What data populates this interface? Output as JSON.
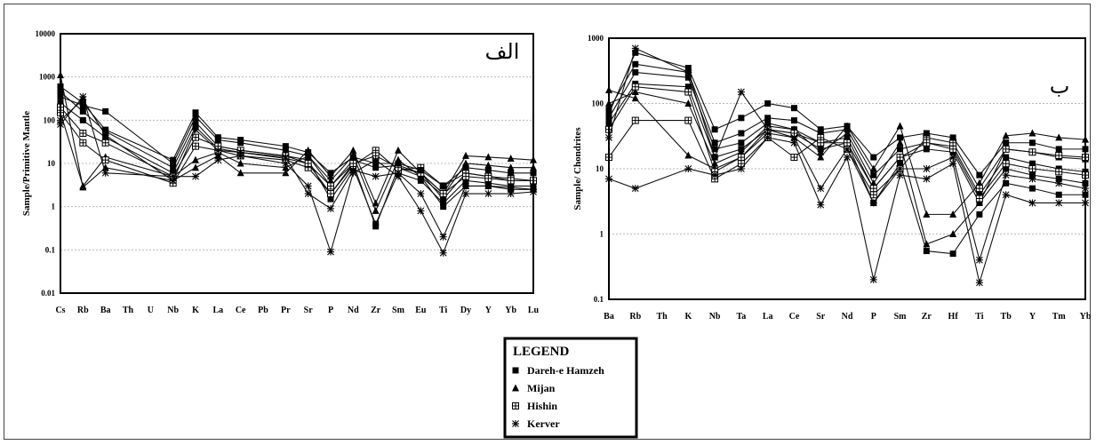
{
  "legend": {
    "title": "LEGEND",
    "items": [
      {
        "label": "Dareh-e Hamzeh",
        "symbol": "square"
      },
      {
        "label": "Mijan",
        "symbol": "triangle"
      },
      {
        "label": "Hishin",
        "symbol": "boxed-plus"
      },
      {
        "label": "Kerver",
        "symbol": "asterisk"
      }
    ]
  },
  "chart_data": [
    {
      "type": "line",
      "title": "الف",
      "ylabel": "Sample/Primitive Mantle",
      "yscale": "log",
      "ylim": [
        0.01,
        10000
      ],
      "yticks": [
        "0.01",
        "0.1",
        "1",
        "10",
        "100",
        "1000",
        "10000"
      ],
      "grid": true,
      "categories": [
        "Cs",
        "Rb",
        "Ba",
        "Th",
        "U",
        "Nb",
        "K",
        "La",
        "Ce",
        "Pb",
        "Pr",
        "Sr",
        "P",
        "Nd",
        "Zr",
        "Sm",
        "Eu",
        "Ti",
        "Dy",
        "Y",
        "Yb",
        "Lu"
      ],
      "series": [
        {
          "group": "Dareh-e Hamzeh",
          "values": [
            450,
            160,
            55,
            null,
            null,
            8,
            90,
            25,
            20,
            null,
            15,
            12,
            1.5,
            8,
            0.4,
            6,
            4,
            1.2,
            4,
            3.5,
            3,
            3
          ]
        },
        {
          "group": "Dareh-e Hamzeh",
          "values": [
            250,
            100,
            40,
            null,
            null,
            6,
            70,
            22,
            18,
            null,
            13,
            10,
            2,
            10,
            0.35,
            8,
            5,
            1,
            3,
            3,
            2.5,
            2.5
          ]
        },
        {
          "group": "Dareh-e Hamzeh",
          "values": [
            350,
            220,
            160,
            null,
            null,
            10,
            120,
            35,
            30,
            null,
            20,
            15,
            3,
            12,
            8,
            9,
            6,
            1.5,
            6,
            5,
            4,
            4
          ]
        },
        {
          "group": "Mijan",
          "values": [
            1100,
            2.8,
            8,
            null,
            null,
            4,
            8,
            15,
            6,
            null,
            6,
            20,
            5,
            20,
            1.2,
            20,
            6,
            2,
            15,
            14,
            13,
            12
          ]
        },
        {
          "group": "Mijan",
          "values": [
            150,
            3,
            14,
            null,
            null,
            5,
            12,
            18,
            10,
            null,
            8,
            15,
            4,
            15,
            0.8,
            12,
            5,
            1.8,
            10,
            9,
            8,
            8
          ]
        },
        {
          "group": "Hishin",
          "values": [
            150,
            30,
            12,
            null,
            null,
            3.5,
            25,
            20,
            15,
            null,
            12,
            8,
            2,
            9,
            20,
            7,
            8,
            3,
            6,
            5,
            4.5,
            4
          ]
        },
        {
          "group": "Hishin",
          "values": [
            200,
            50,
            30,
            null,
            null,
            5,
            40,
            25,
            20,
            null,
            15,
            10,
            3,
            10,
            15,
            8,
            6,
            2,
            5,
            4.5,
            4,
            4
          ]
        },
        {
          "group": "Kerver",
          "values": [
            80,
            350,
            6,
            null,
            null,
            5,
            5,
            12,
            15,
            null,
            10,
            3,
            0.09,
            6,
            12,
            5,
            0.8,
            0.085,
            2,
            2,
            2,
            2.2
          ]
        },
        {
          "group": "Kerver",
          "values": [
            100,
            300,
            45,
            null,
            null,
            4,
            60,
            20,
            18,
            null,
            14,
            2,
            0.9,
            7,
            5,
            6,
            2,
            0.2,
            3,
            3,
            2.8,
            2.5
          ]
        },
        {
          "group": "Dareh-e Hamzeh",
          "values": [
            600,
            250,
            60,
            null,
            null,
            12,
            150,
            40,
            35,
            null,
            25,
            18,
            6,
            14,
            10,
            10,
            7,
            3,
            8,
            7,
            6,
            6
          ]
        }
      ]
    },
    {
      "type": "line",
      "title": "ب",
      "ylabel": "Sample/ Chondrites",
      "yscale": "log",
      "ylim": [
        0.1,
        1000
      ],
      "yticks": [
        "0.1",
        "1",
        "10",
        "100",
        "1000"
      ],
      "grid": true,
      "categories": [
        "Ba",
        "Rb",
        "Th",
        "K",
        "Nb",
        "Ta",
        "La",
        "Ce",
        "Sr",
        "Nd",
        "P",
        "Sm",
        "Zr",
        "Hf",
        "Ti",
        "Tb",
        "Y",
        "Tm",
        "Yb"
      ],
      "series": [
        {
          "group": "Dareh-e Hamzeh",
          "values": [
            60,
            300,
            null,
            250,
            20,
            25,
            50,
            40,
            25,
            30,
            5,
            15,
            20,
            18,
            3,
            10,
            8,
            7,
            6
          ]
        },
        {
          "group": "Dareh-e Hamzeh",
          "values": [
            80,
            400,
            null,
            300,
            25,
            35,
            60,
            55,
            35,
            40,
            8,
            20,
            25,
            22,
            4,
            15,
            12,
            10,
            9
          ]
        },
        {
          "group": "Dareh-e Hamzeh",
          "values": [
            50,
            200,
            null,
            180,
            15,
            20,
            40,
            35,
            20,
            25,
            3,
            12,
            0.55,
            0.5,
            2,
            6,
            5,
            4,
            4
          ]
        },
        {
          "group": "Mijan",
          "values": [
            160,
            120,
            null,
            16,
            10,
            15,
            35,
            30,
            15,
            45,
            10,
            45,
            2,
            2,
            6,
            32,
            35,
            30,
            28
          ]
        },
        {
          "group": "Mijan",
          "values": [
            100,
            150,
            null,
            100,
            12,
            18,
            45,
            40,
            18,
            35,
            6,
            25,
            0.7,
            1,
            3,
            20,
            18,
            15,
            14
          ]
        },
        {
          "group": "Hishin",
          "values": [
            15,
            55,
            null,
            55,
            7,
            12,
            30,
            15,
            30,
            20,
            4,
            10,
            30,
            25,
            5,
            20,
            18,
            16,
            15
          ]
        },
        {
          "group": "Hishin",
          "values": [
            40,
            180,
            null,
            150,
            9,
            15,
            40,
            35,
            25,
            25,
            5,
            15,
            25,
            20,
            3.5,
            12,
            10,
            9,
            8
          ]
        },
        {
          "group": "Kerver",
          "values": [
            7,
            5,
            null,
            10,
            8,
            10,
            30,
            25,
            2.8,
            15,
            0.2,
            8,
            7,
            12,
            0.18,
            4,
            3,
            3,
            3
          ]
        },
        {
          "group": "Kerver",
          "values": [
            30,
            700,
            null,
            300,
            15,
            150,
            40,
            30,
            5,
            20,
            3,
            10,
            10,
            15,
            0.4,
            8,
            7,
            6,
            5
          ]
        },
        {
          "group": "Dareh-e Hamzeh",
          "values": [
            70,
            600,
            null,
            350,
            40,
            60,
            100,
            85,
            40,
            45,
            15,
            30,
            35,
            30,
            8,
            25,
            25,
            20,
            20
          ]
        }
      ]
    }
  ]
}
